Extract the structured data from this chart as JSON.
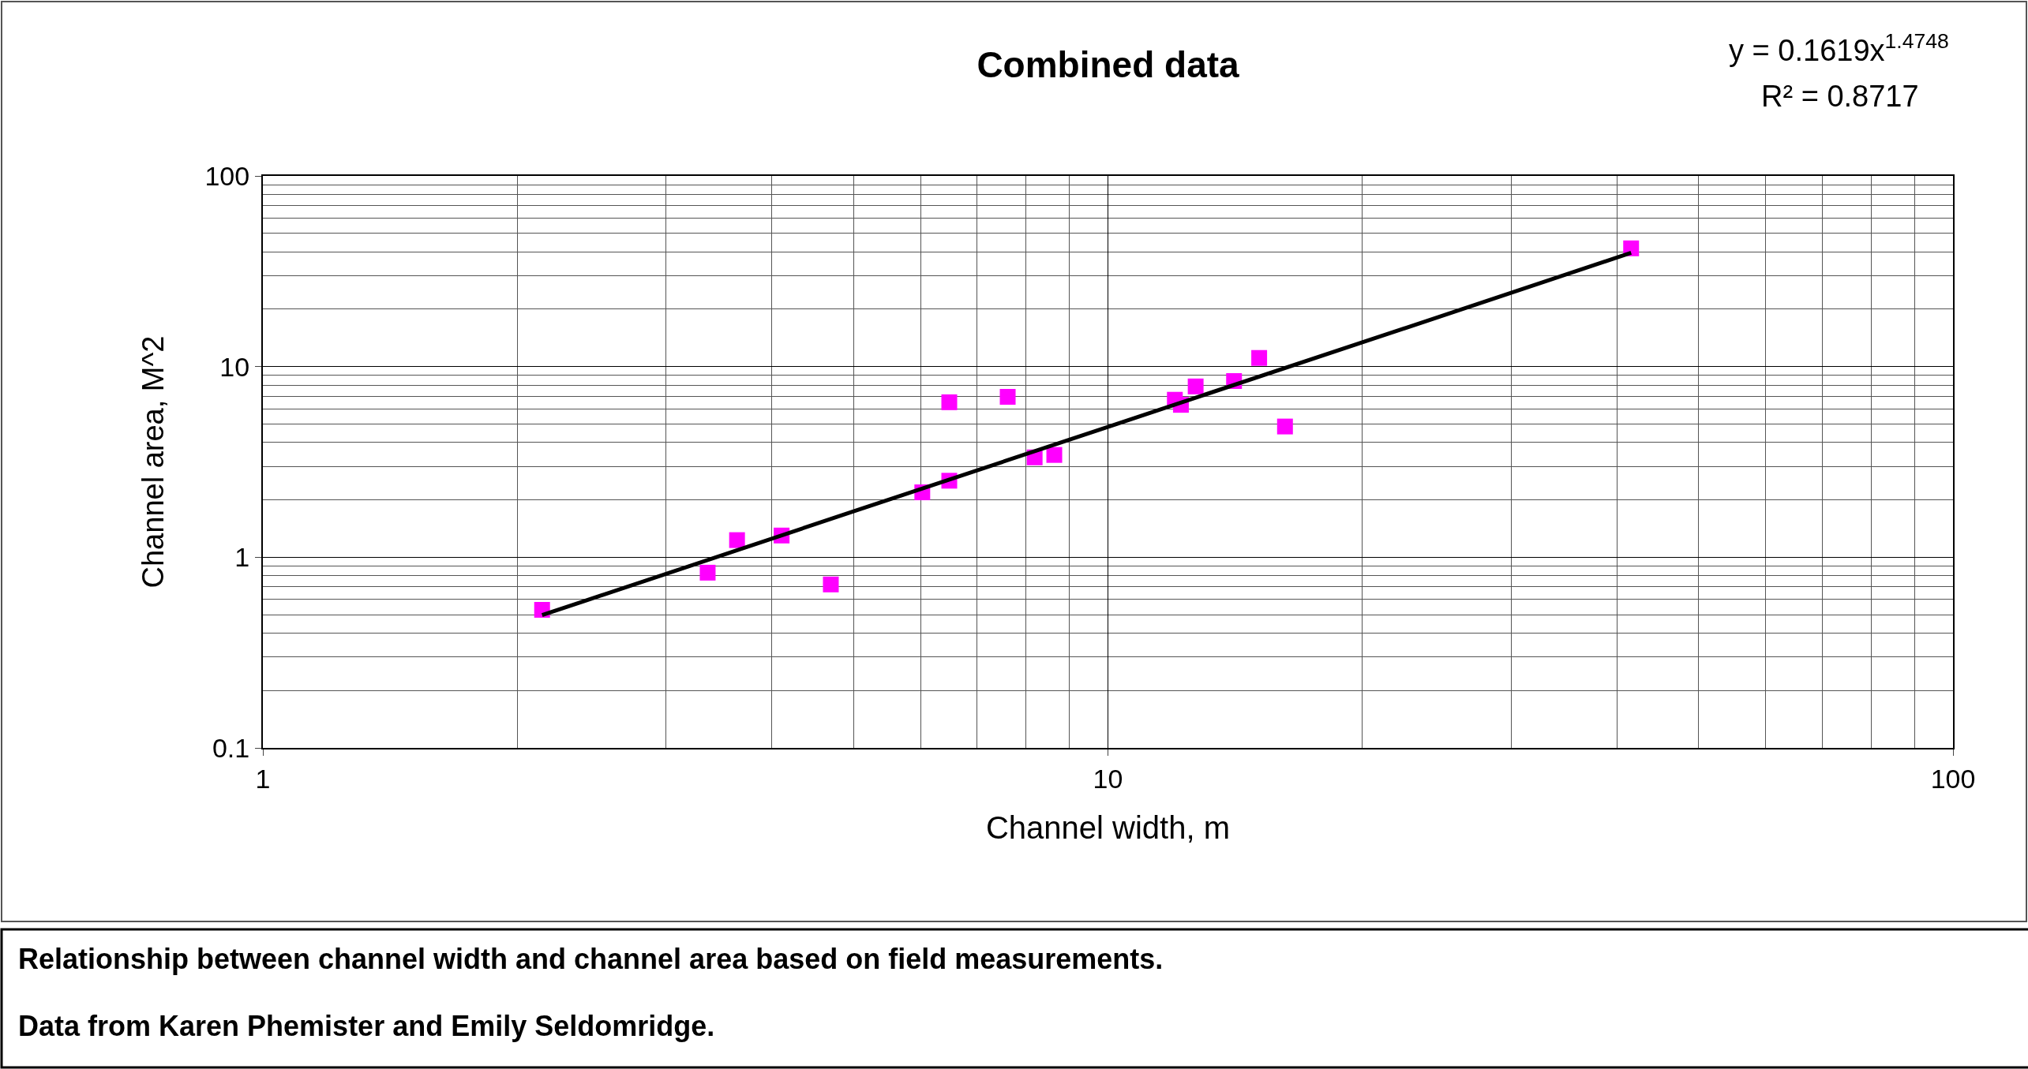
{
  "chart_data": {
    "type": "scatter",
    "title": "Combined data",
    "xlabel": "Channel width, m",
    "ylabel": "Channel area, M^2",
    "log": "xy",
    "grid": true,
    "marker": "square",
    "xlim": [
      1,
      100
    ],
    "xticks": [
      1,
      10,
      100
    ],
    "ylim": [
      0.1,
      100
    ],
    "yticks": [
      0.1,
      1,
      10,
      100
    ],
    "series": [
      {
        "color": "#ff00ff",
        "x": [
          2.14,
          3.36,
          3.64,
          4.11,
          4.7,
          6.03,
          6.49,
          6.49,
          7.61,
          8.19,
          8.64,
          12.0,
          12.2,
          12.7,
          14.1,
          15.1,
          16.2,
          41.6
        ],
        "values": [
          0.53,
          0.83,
          1.23,
          1.3,
          0.72,
          2.19,
          2.52,
          6.5,
          6.94,
          3.34,
          3.44,
          6.7,
          6.3,
          7.87,
          8.4,
          11.1,
          4.85,
          41.7
        ]
      },
      {
        "type": "line",
        "color": "#000000",
        "marker": "none",
        "x": [
          2.14,
          5,
          10,
          20,
          41.6
        ],
        "values": [
          0.497,
          1.74,
          4.83,
          13.4,
          39.5
        ]
      }
    ],
    "annotations": [
      "y = 0.1619x$^{1.4748}$",
      "R² = 0.8717",
      "Relationship between channel width and channel area based on field measurements.",
      "Data from Karen Phemister and Emily Seldomridge."
    ]
  }
}
